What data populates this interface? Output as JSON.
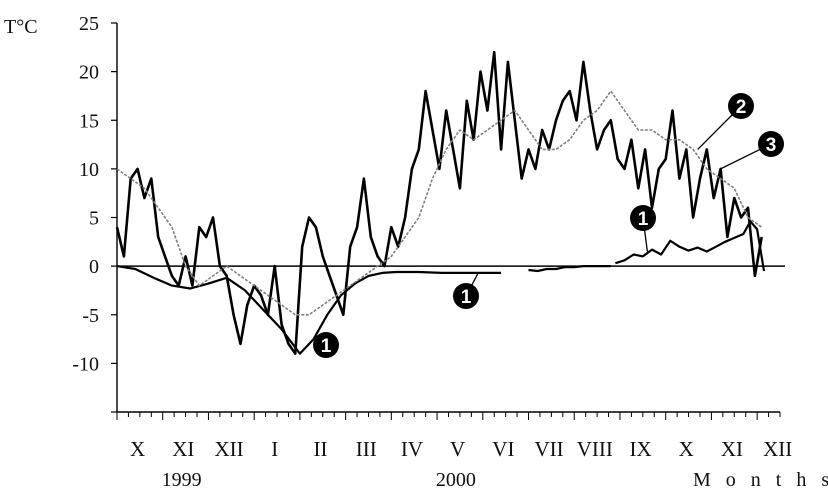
{
  "chart_data": {
    "type": "line",
    "ylabel": "T°C",
    "xlabel": "M o n t h s",
    "ylim": [
      -15,
      25
    ],
    "yticks": [
      25,
      20,
      15,
      10,
      5,
      0,
      -5,
      -10
    ],
    "months": [
      "X",
      "XI",
      "XII",
      "I",
      "II",
      "III",
      "IV",
      "V",
      "VI",
      "VII",
      "VIII",
      "IX",
      "X",
      "XI",
      "XII"
    ],
    "years": [
      "1999",
      "2000"
    ],
    "grid": false,
    "series": [
      {
        "name": "1",
        "color": "#000000",
        "segments": [
          {
            "x": [
              0.0,
              0.4,
              0.8,
              1.2,
              1.6,
              2.0,
              2.4,
              2.8,
              3.2,
              3.6,
              4.0,
              4.3,
              4.6,
              4.9,
              5.2,
              5.5,
              5.8,
              6.1
            ],
            "y": [
              0,
              -0.3,
              -1.2,
              -2.0,
              -2.3,
              -1.8,
              -1.2,
              -2.5,
              -4.5,
              -6.5,
              -9.0,
              -7.5,
              -5.0,
              -3.0,
              -1.8,
              -1.0,
              -0.7,
              -0.6
            ]
          },
          {
            "x": [
              6.1,
              6.6,
              7.1,
              7.6,
              8.1,
              8.4
            ],
            "y": [
              -0.6,
              -0.6,
              -0.7,
              -0.7,
              -0.7,
              -0.7
            ]
          },
          {
            "x": [
              9.0,
              9.2,
              9.4,
              9.6,
              9.8,
              10.0,
              10.2,
              10.4,
              10.6,
              10.8
            ],
            "y": [
              -0.4,
              -0.5,
              -0.3,
              -0.3,
              -0.1,
              -0.1,
              0,
              0,
              0,
              0
            ]
          },
          {
            "x": [
              10.9,
              11.1,
              11.3,
              11.5,
              11.7,
              11.9,
              12.1,
              12.3,
              12.5,
              12.7,
              12.9,
              13.1,
              13.3,
              13.5,
              13.7,
              13.85,
              14.0,
              14.15
            ],
            "y": [
              0.3,
              0.6,
              1.2,
              1.0,
              1.7,
              1.2,
              2.6,
              2.0,
              1.6,
              1.9,
              1.5,
              2.0,
              2.5,
              2.9,
              3.3,
              4.6,
              3.8,
              -0.5
            ]
          }
        ]
      },
      {
        "name": "2",
        "color": "#000000",
        "x": [
          0.0,
          0.15,
          0.3,
          0.45,
          0.6,
          0.75,
          0.9,
          1.05,
          1.2,
          1.35,
          1.5,
          1.65,
          1.8,
          1.95,
          2.1,
          2.25,
          2.4,
          2.55,
          2.7,
          2.85,
          3.0,
          3.15,
          3.3,
          3.45,
          3.6,
          3.75,
          3.9,
          4.05,
          4.2,
          4.35,
          4.5,
          4.65,
          4.8,
          4.95,
          5.1,
          5.25,
          5.4,
          5.55,
          5.7,
          5.85,
          6.0,
          6.15,
          6.3,
          6.45,
          6.6,
          6.75,
          6.9,
          7.05,
          7.2,
          7.35,
          7.5,
          7.65,
          7.8,
          7.95,
          8.1,
          8.25,
          8.4,
          8.55,
          8.7,
          8.85,
          9.0,
          9.15,
          9.3,
          9.45,
          9.6,
          9.75,
          9.9,
          10.05,
          10.2,
          10.35,
          10.5,
          10.65,
          10.8,
          10.95,
          11.1,
          11.25,
          11.4,
          11.55,
          11.7,
          11.85,
          12.0,
          12.15,
          12.3,
          12.45,
          12.6,
          12.75,
          12.9,
          13.05,
          13.2,
          13.35,
          13.5,
          13.65,
          13.8,
          13.95,
          14.1
        ],
        "y": [
          4,
          1,
          9,
          10,
          7,
          9,
          3,
          1,
          -1,
          -2,
          1,
          -2,
          4,
          3,
          5,
          0,
          -1,
          -5,
          -8,
          -4,
          -2,
          -3,
          -5,
          0,
          -6,
          -8,
          -9,
          2,
          5,
          4,
          1,
          -1,
          -3,
          -5,
          2,
          4,
          9,
          3,
          1,
          0,
          4,
          2,
          5,
          10,
          12,
          18,
          14,
          10,
          16,
          12,
          8,
          17,
          13,
          20,
          16,
          22,
          12,
          21,
          15,
          9,
          12,
          10,
          14,
          12,
          15,
          17,
          18,
          15,
          21,
          16,
          12,
          14,
          15,
          11,
          10,
          13,
          8,
          12,
          6,
          10,
          11,
          16,
          9,
          12,
          5,
          9,
          12,
          7,
          10,
          3,
          7,
          5,
          6,
          -1,
          3
        ]
      },
      {
        "name": "3",
        "color": "#808080",
        "x": [
          0.0,
          0.3,
          0.6,
          0.9,
          1.2,
          1.5,
          1.8,
          2.1,
          2.4,
          2.7,
          3.0,
          3.3,
          3.6,
          3.9,
          4.2,
          4.5,
          4.8,
          5.1,
          5.4,
          5.7,
          6.0,
          6.3,
          6.6,
          6.9,
          7.2,
          7.5,
          7.8,
          8.1,
          8.4,
          8.7,
          9.0,
          9.3,
          9.6,
          9.9,
          10.2,
          10.5,
          10.8,
          11.1,
          11.4,
          11.7,
          12.0,
          12.3,
          12.6,
          12.9,
          13.2,
          13.5,
          13.8,
          14.1
        ],
        "y": [
          10,
          9,
          8,
          6,
          4,
          0,
          -2,
          -1,
          0,
          -1,
          -2,
          -3,
          -4,
          -5,
          -5,
          -4,
          -3,
          -2,
          -1,
          0,
          1,
          3,
          5,
          9,
          12,
          14,
          13,
          14,
          15,
          16,
          14,
          12,
          12,
          13,
          15,
          16,
          18,
          16,
          14,
          14,
          13,
          13,
          12,
          10,
          9,
          8,
          5,
          4
        ]
      }
    ],
    "annotations": [
      "1",
      "1",
      "1",
      "2",
      "3"
    ]
  }
}
